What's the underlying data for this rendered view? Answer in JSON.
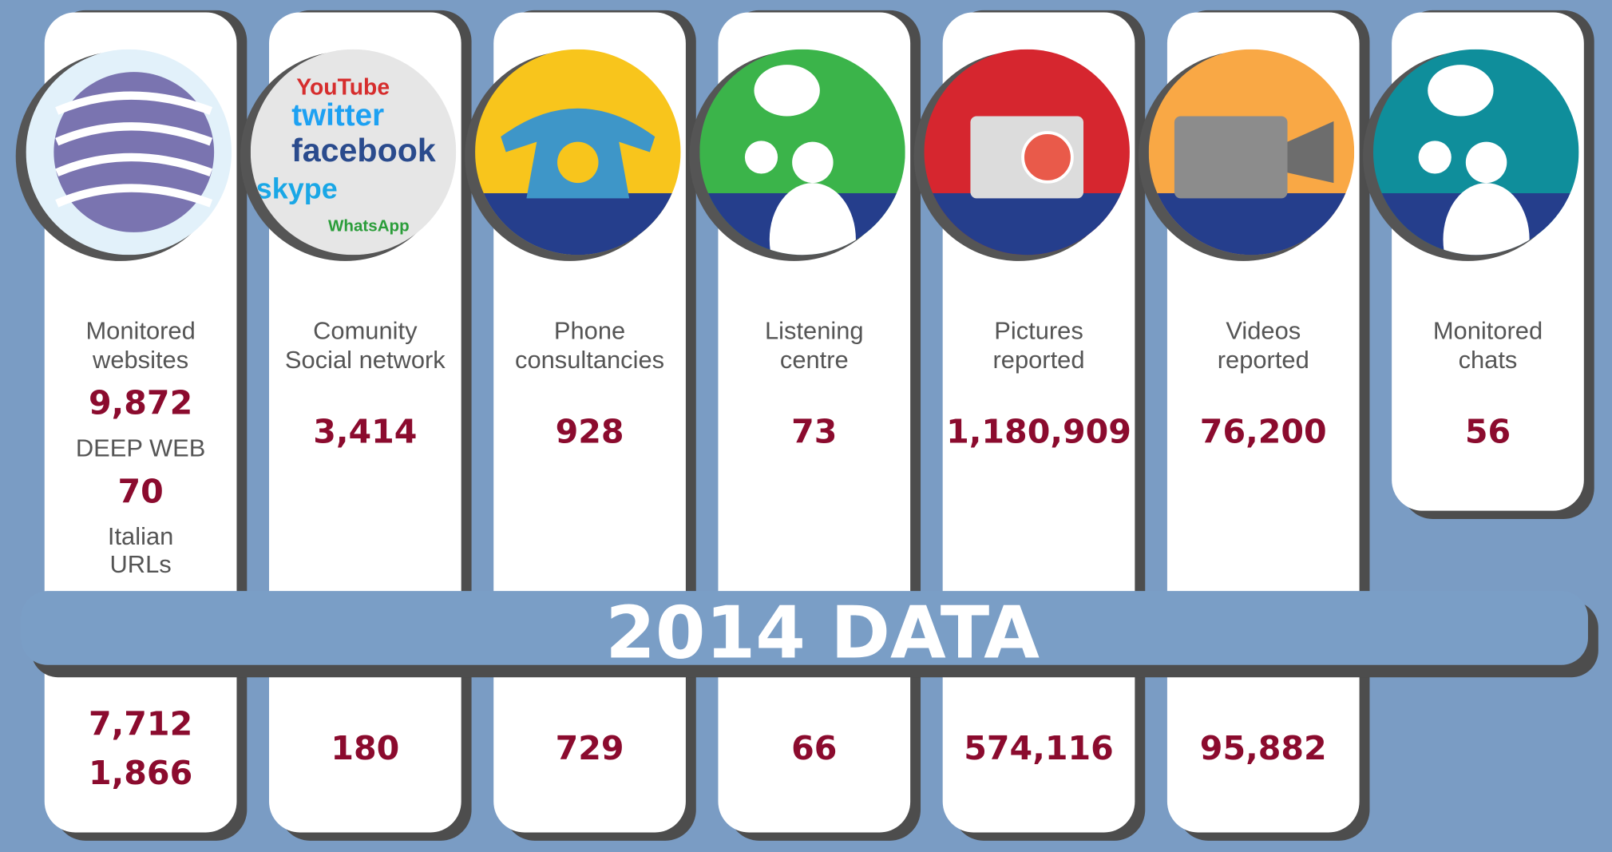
{
  "title": "2014 DATA",
  "columns": [
    {
      "label": [
        "Monitored",
        "websites"
      ],
      "items": [
        "9,872",
        "DEEP WEB",
        "70",
        "Italian URLs"
      ],
      "bottom": [
        "7,712",
        "1,866"
      ]
    },
    {
      "label": [
        "Comunity",
        "Social network"
      ],
      "icon_texts": [
        "YouTube",
        "twitter",
        "facebook",
        "skype",
        "WhatsApp"
      ],
      "items": [
        "3,414"
      ],
      "bottom": [
        "180"
      ]
    },
    {
      "label": [
        "Phone",
        "consultancies"
      ],
      "items": [
        "928"
      ],
      "bottom": [
        "729"
      ]
    },
    {
      "label": [
        "Listening",
        "centre"
      ],
      "items": [
        "73"
      ],
      "bottom": [
        "66"
      ]
    },
    {
      "label": [
        "Pictures",
        "reported"
      ],
      "items": [
        "1,180,909"
      ],
      "bottom": [
        "574,116"
      ]
    },
    {
      "label": [
        "Videos",
        "reported"
      ],
      "items": [
        "76,200"
      ],
      "bottom": [
        "95,882"
      ]
    },
    {
      "label": [
        "Monitored",
        "chats"
      ],
      "items": [
        "56"
      ]
    }
  ]
}
